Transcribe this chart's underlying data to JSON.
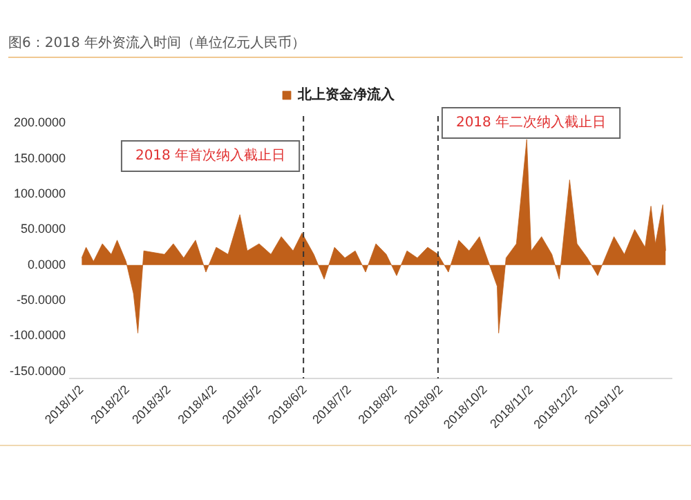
{
  "chart_data": {
    "type": "area",
    "title": "图6：2018 年外资流入时间（单位亿元人民币）",
    "x": [
      "2018-01-02",
      "2018-01-05",
      "2018-01-10",
      "2018-01-16",
      "2018-01-22",
      "2018-01-26",
      "2018-02-01",
      "2018-02-06",
      "2018-02-09",
      "2018-02-13",
      "2018-02-27",
      "2018-03-05",
      "2018-03-12",
      "2018-03-20",
      "2018-03-27",
      "2018-04-03",
      "2018-04-11",
      "2018-04-19",
      "2018-04-24",
      "2018-05-02",
      "2018-05-10",
      "2018-05-17",
      "2018-05-25",
      "2018-05-31",
      "2018-06-08",
      "2018-06-15",
      "2018-06-22",
      "2018-06-29",
      "2018-07-06",
      "2018-07-13",
      "2018-07-20",
      "2018-07-27",
      "2018-08-03",
      "2018-08-10",
      "2018-08-17",
      "2018-08-24",
      "2018-08-31",
      "2018-09-07",
      "2018-09-14",
      "2018-09-21",
      "2018-09-28",
      "2018-10-10",
      "2018-10-11",
      "2018-10-16",
      "2018-10-23",
      "2018-10-30",
      "2018-11-02",
      "2018-11-09",
      "2018-11-16",
      "2018-11-21",
      "2018-11-28",
      "2018-12-03",
      "2018-12-10",
      "2018-12-17",
      "2018-12-24",
      "2018-12-28",
      "2019-01-04",
      "2019-01-11",
      "2019-01-18",
      "2019-01-22",
      "2019-01-25",
      "2019-01-30",
      "2019-02-01"
    ],
    "series": [
      {
        "name": "北上资金净流入",
        "color": "#c0601a",
        "values": [
          10,
          25,
          5,
          30,
          15,
          35,
          5,
          -40,
          -96,
          20,
          15,
          30,
          10,
          35,
          -10,
          25,
          15,
          71,
          20,
          30,
          15,
          40,
          20,
          45,
          15,
          -20,
          25,
          10,
          20,
          -10,
          30,
          15,
          -15,
          20,
          10,
          25,
          15,
          -10,
          35,
          20,
          40,
          -30,
          -96,
          10,
          30,
          177,
          20,
          40,
          15,
          -20,
          120,
          30,
          10,
          -15,
          20,
          40,
          15,
          50,
          25,
          83,
          30,
          85,
          20
        ]
      }
    ],
    "xlim": [
      "2017-12-25",
      "2019-02-05"
    ],
    "xticks": [
      {
        "value": "2018-01-02",
        "label": "2018/1/2"
      },
      {
        "value": "2018-02-02",
        "label": "2018/2/2"
      },
      {
        "value": "2018-03-02",
        "label": "2018/3/2"
      },
      {
        "value": "2018-04-02",
        "label": "2018/4/2"
      },
      {
        "value": "2018-05-02",
        "label": "2018/5/2"
      },
      {
        "value": "2018-06-02",
        "label": "2018/6/2"
      },
      {
        "value": "2018-07-02",
        "label": "2018/7/2"
      },
      {
        "value": "2018-08-02",
        "label": "2018/8/2"
      },
      {
        "value": "2018-09-02",
        "label": "2018/9/2"
      },
      {
        "value": "2018-10-02",
        "label": "2018/10/2"
      },
      {
        "value": "2018-11-02",
        "label": "2018/11/2"
      },
      {
        "value": "2018-12-02",
        "label": "2018/12/2"
      },
      {
        "value": "2019-01-02",
        "label": "2019/1/2"
      }
    ],
    "ylim": [
      -160,
      210
    ],
    "yticks": [
      {
        "value": -150,
        "label": "-150.0000"
      },
      {
        "value": -100,
        "label": "-100.0000"
      },
      {
        "value": -50,
        "label": "-50.0000"
      },
      {
        "value": 0,
        "label": "0.0000"
      },
      {
        "value": 50,
        "label": "50.0000"
      },
      {
        "value": 100,
        "label": "100.0000"
      },
      {
        "value": 150,
        "label": "150.0000"
      },
      {
        "value": 200,
        "label": "200.0000"
      }
    ],
    "ref_lines": [
      {
        "axis": "x",
        "value": "2018-06-01",
        "label": "2018 年首次纳入截止日",
        "line_style": "dashed",
        "color": "#333333"
      },
      {
        "axis": "x",
        "value": "2018-08-31",
        "label": "2018 年二次纳入截止日",
        "line_style": "dashed",
        "color": "#333333"
      }
    ],
    "legend": "top",
    "grid": false
  }
}
